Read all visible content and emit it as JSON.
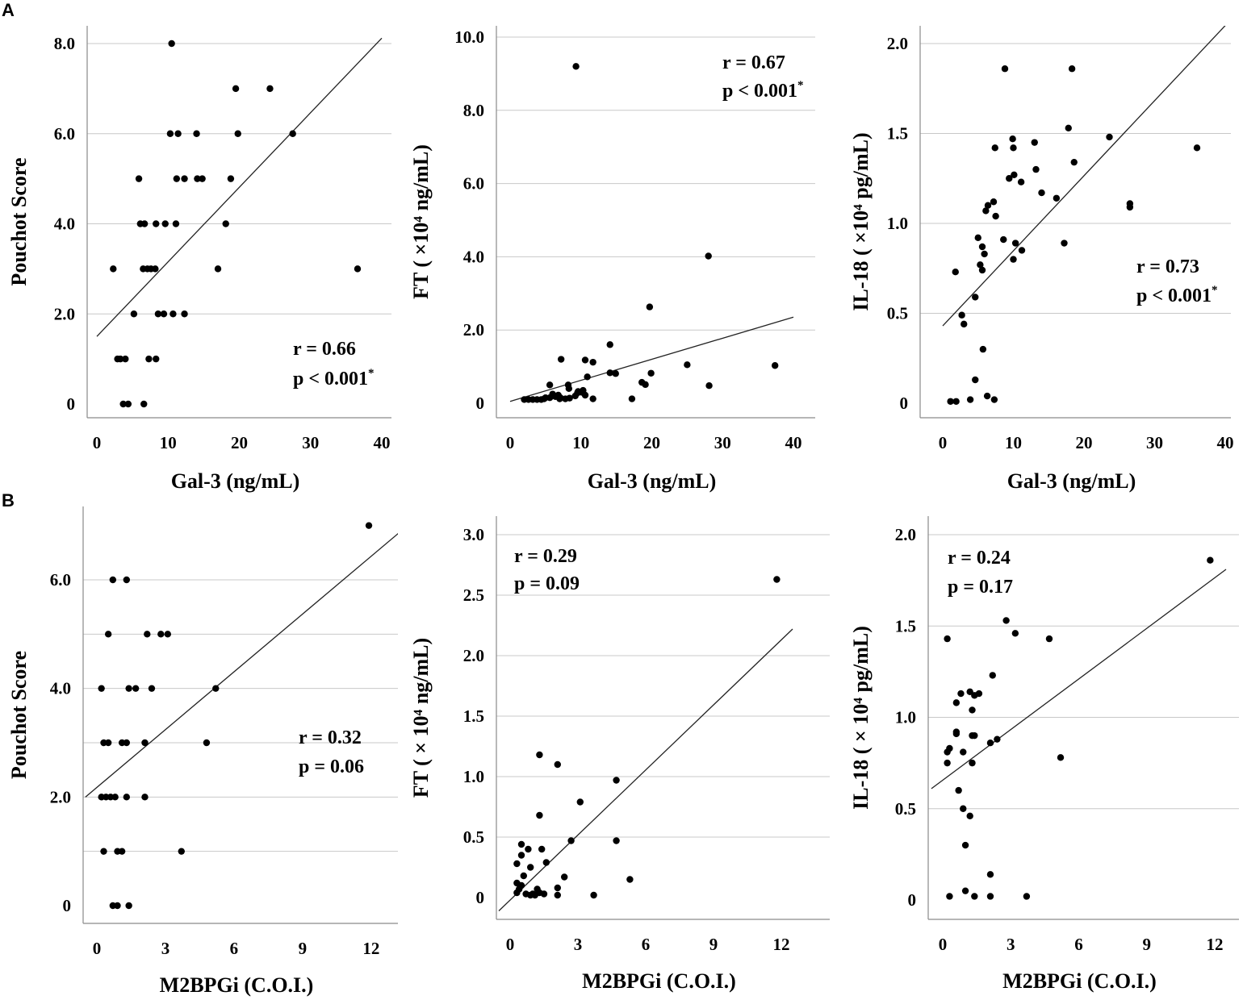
{
  "panel_letters": {
    "a": "A",
    "b": "B"
  },
  "chart_data": [
    {
      "id": "a1",
      "type": "scatter",
      "xlabel": "Gal-3 (ng/mL)",
      "ylabel": "Pouchot Score",
      "xlim": [
        0,
        40
      ],
      "ylim": [
        0,
        8
      ],
      "xticks": [
        0,
        10,
        20,
        30,
        40
      ],
      "xtick_labels": [
        "0",
        "10",
        "20",
        "30",
        "40"
      ],
      "yticks": [
        0,
        2,
        4,
        6,
        8
      ],
      "ytick_labels": [
        "0",
        "2.0",
        "4.0",
        "6.0",
        "8.0"
      ],
      "fit_line": {
        "x": [
          0,
          40
        ],
        "y": [
          1.5,
          8.12
        ]
      },
      "stat_lines": [
        "r = 0.66",
        "p < 0.001"
      ],
      "stat_sup": "*",
      "points": [
        [
          10.5,
          8
        ],
        [
          19.5,
          7
        ],
        [
          24.3,
          7
        ],
        [
          10.3,
          6
        ],
        [
          11.4,
          6
        ],
        [
          14,
          6
        ],
        [
          19.8,
          6
        ],
        [
          27.5,
          6
        ],
        [
          5.9,
          5
        ],
        [
          11.2,
          5
        ],
        [
          12.3,
          5
        ],
        [
          14.1,
          5
        ],
        [
          14.8,
          5
        ],
        [
          18.8,
          5
        ],
        [
          6.1,
          4
        ],
        [
          6.7,
          4
        ],
        [
          8.3,
          4
        ],
        [
          9.6,
          4
        ],
        [
          11.1,
          4
        ],
        [
          18.1,
          4
        ],
        [
          2.3,
          3
        ],
        [
          6.5,
          3
        ],
        [
          7.1,
          3
        ],
        [
          7.6,
          3
        ],
        [
          8.2,
          3
        ],
        [
          17,
          3
        ],
        [
          36.6,
          3
        ],
        [
          5.2,
          2
        ],
        [
          8.6,
          2
        ],
        [
          9.4,
          2
        ],
        [
          10.7,
          2
        ],
        [
          12.3,
          2
        ],
        [
          2.9,
          1
        ],
        [
          3.3,
          1
        ],
        [
          4,
          1
        ],
        [
          7.3,
          1
        ],
        [
          8.3,
          1
        ],
        [
          3.7,
          0
        ],
        [
          4.4,
          0
        ],
        [
          6.6,
          0
        ]
      ]
    },
    {
      "id": "a2",
      "type": "scatter",
      "xlabel": "Gal-3 (ng/mL)",
      "ylabel": "FT ( ×10⁴ ng/mL)",
      "xlim": [
        0,
        40
      ],
      "ylim": [
        0,
        10
      ],
      "xticks": [
        0,
        10,
        20,
        30,
        40
      ],
      "xtick_labels": [
        "0",
        "10",
        "20",
        "30",
        "40"
      ],
      "yticks": [
        0,
        2,
        4,
        6,
        8,
        10
      ],
      "ytick_labels": [
        "0",
        "2.0",
        "4.0",
        "6.0",
        "8.0",
        "10.0"
      ],
      "fit_line": {
        "x": [
          0,
          40
        ],
        "y": [
          0.05,
          2.35
        ]
      },
      "stat_lines": [
        "r = 0.67",
        "p < 0.001"
      ],
      "stat_sup": "*",
      "points": [
        [
          9.3,
          9.2
        ],
        [
          28,
          4.02
        ],
        [
          19.7,
          2.63
        ],
        [
          14.1,
          1.6
        ],
        [
          7.2,
          1.2
        ],
        [
          10.6,
          1.18
        ],
        [
          11.7,
          1.12
        ],
        [
          25,
          1.05
        ],
        [
          37.4,
          1.03
        ],
        [
          14.1,
          0.83
        ],
        [
          14.9,
          0.81
        ],
        [
          19.9,
          0.82
        ],
        [
          10.9,
          0.72
        ],
        [
          18.6,
          0.57
        ],
        [
          19.1,
          0.51
        ],
        [
          5.6,
          0.5
        ],
        [
          8.2,
          0.5
        ],
        [
          28.1,
          0.48
        ],
        [
          8.3,
          0.4
        ],
        [
          10.3,
          0.35
        ],
        [
          9.6,
          0.32
        ],
        [
          10.1,
          0.3
        ],
        [
          9.5,
          0.28
        ],
        [
          6,
          0.25
        ],
        [
          6.8,
          0.22
        ],
        [
          9.2,
          0.2
        ],
        [
          10.6,
          0.22
        ],
        [
          5,
          0.15
        ],
        [
          7.1,
          0.15
        ],
        [
          2,
          0.1
        ],
        [
          2.6,
          0.1
        ],
        [
          3.2,
          0.1
        ],
        [
          3.8,
          0.1
        ],
        [
          4.4,
          0.1
        ],
        [
          4.8,
          0.12
        ],
        [
          5.6,
          0.15
        ],
        [
          6.4,
          0.18
        ],
        [
          7,
          0.12
        ],
        [
          7.8,
          0.12
        ],
        [
          8.4,
          0.14
        ],
        [
          11.7,
          0.12
        ],
        [
          17.2,
          0.12
        ]
      ]
    },
    {
      "id": "a3",
      "type": "scatter",
      "xlabel": "Gal-3 (ng/mL)",
      "ylabel": "IL-18 ( ×10⁴ pg/mL)",
      "xlim": [
        0,
        40
      ],
      "ylim": [
        0,
        2
      ],
      "xticks": [
        0,
        10,
        20,
        30,
        40
      ],
      "xtick_labels": [
        "0",
        "10",
        "20",
        "30",
        "40"
      ],
      "yticks": [
        0,
        0.5,
        1,
        1.5,
        2
      ],
      "ytick_labels": [
        "0",
        "0.5",
        "1.0",
        "1.5",
        "2.0"
      ],
      "fit_line": {
        "x": [
          0,
          40
        ],
        "y": [
          0.43,
          2.1
        ]
      },
      "stat_lines": [
        "r = 0.73",
        "p < 0.001"
      ],
      "stat_sup": "*",
      "points": [
        [
          8.8,
          1.86
        ],
        [
          18.3,
          1.86
        ],
        [
          17.8,
          1.53
        ],
        [
          23.6,
          1.48
        ],
        [
          9.9,
          1.47
        ],
        [
          13,
          1.45
        ],
        [
          7.4,
          1.42
        ],
        [
          10,
          1.42
        ],
        [
          36,
          1.42
        ],
        [
          18.6,
          1.34
        ],
        [
          13.2,
          1.3
        ],
        [
          10.1,
          1.27
        ],
        [
          9.4,
          1.25
        ],
        [
          11.1,
          1.23
        ],
        [
          14,
          1.17
        ],
        [
          16.1,
          1.14
        ],
        [
          7.2,
          1.12
        ],
        [
          26.5,
          1.11
        ],
        [
          6.4,
          1.1
        ],
        [
          6.1,
          1.07
        ],
        [
          26.5,
          1.09
        ],
        [
          7.5,
          1.04
        ],
        [
          5,
          0.92
        ],
        [
          8.6,
          0.91
        ],
        [
          10.3,
          0.89
        ],
        [
          17.2,
          0.89
        ],
        [
          5.6,
          0.87
        ],
        [
          11.2,
          0.85
        ],
        [
          5.9,
          0.83
        ],
        [
          10,
          0.8
        ],
        [
          1.8,
          0.73
        ],
        [
          5.3,
          0.77
        ],
        [
          5.6,
          0.74
        ],
        [
          4.6,
          0.59
        ],
        [
          2.7,
          0.49
        ],
        [
          3,
          0.44
        ],
        [
          5.7,
          0.3
        ],
        [
          4.6,
          0.13
        ],
        [
          6.3,
          0.04
        ],
        [
          7.3,
          0.02
        ],
        [
          1.1,
          0.01
        ],
        [
          1.9,
          0.01
        ],
        [
          3.9,
          0.02
        ]
      ]
    },
    {
      "id": "b1",
      "type": "scatter",
      "xlabel": "M2BPGi (C.O.I.)",
      "ylabel": "Pouchot Score",
      "xlim": [
        0,
        12.5
      ],
      "ylim": [
        0,
        7.1
      ],
      "xticks": [
        0,
        3,
        6,
        9,
        12
      ],
      "xtick_labels": [
        "0",
        "3",
        "6",
        "9",
        "12"
      ],
      "yticks": [
        0,
        1,
        2,
        3,
        4,
        5,
        6
      ],
      "ytick_labels": [
        "0",
        "",
        "2.0",
        "",
        "4.0",
        "",
        "6.0"
      ],
      "fit_line": {
        "x": [
          -0.5,
          13.2
        ],
        "y": [
          2,
          6.86
        ]
      },
      "stat_lines": [
        "r = 0.32",
        "p = 0.06"
      ],
      "stat_sup": "",
      "points": [
        [
          11.9,
          7
        ],
        [
          0.7,
          6
        ],
        [
          1.3,
          6
        ],
        [
          0.5,
          5
        ],
        [
          2.2,
          5
        ],
        [
          2.8,
          5
        ],
        [
          3.1,
          5
        ],
        [
          0.2,
          4
        ],
        [
          1.4,
          4
        ],
        [
          1.7,
          4
        ],
        [
          2.4,
          4
        ],
        [
          5.2,
          4
        ],
        [
          0.3,
          3
        ],
        [
          0.5,
          3
        ],
        [
          1.1,
          3
        ],
        [
          1.3,
          3
        ],
        [
          2.1,
          3
        ],
        [
          4.8,
          3
        ],
        [
          0.2,
          2
        ],
        [
          0.4,
          2
        ],
        [
          0.6,
          2
        ],
        [
          0.8,
          2
        ],
        [
          1.3,
          2
        ],
        [
          2.1,
          2
        ],
        [
          0.3,
          1
        ],
        [
          0.9,
          1
        ],
        [
          1.1,
          1
        ],
        [
          3.7,
          1
        ],
        [
          0.7,
          0
        ],
        [
          0.9,
          0
        ],
        [
          1.4,
          0
        ]
      ]
    },
    {
      "id": "b2",
      "type": "scatter",
      "xlabel": "M2BPGi (C.O.I.)",
      "ylabel": "FT ( × 10⁴ ng/mL)",
      "xlim": [
        0,
        12.5
      ],
      "ylim": [
        0,
        3
      ],
      "xticks": [
        0,
        3,
        6,
        9,
        12
      ],
      "xtick_labels": [
        "0",
        "3",
        "6",
        "9",
        "12"
      ],
      "yticks": [
        0,
        0.5,
        1,
        1.5,
        2,
        2.5,
        3
      ],
      "ytick_labels": [
        "0",
        "0.5",
        "1.0",
        "1.5",
        "2.0",
        "2.5",
        "3.0"
      ],
      "fit_line": {
        "x": [
          -0.5,
          12.5
        ],
        "y": [
          -0.11,
          2.22
        ]
      },
      "stat_lines": [
        "r = 0.29",
        "p = 0.09"
      ],
      "stat_sup": "",
      "points": [
        [
          11.8,
          2.63
        ],
        [
          1.3,
          1.18
        ],
        [
          2.1,
          1.1
        ],
        [
          4.7,
          0.97
        ],
        [
          3.1,
          0.79
        ],
        [
          1.3,
          0.68
        ],
        [
          2.7,
          0.47
        ],
        [
          4.7,
          0.47
        ],
        [
          0.5,
          0.44
        ],
        [
          0.8,
          0.4
        ],
        [
          1.4,
          0.4
        ],
        [
          0.5,
          0.35
        ],
        [
          1.6,
          0.29
        ],
        [
          0.3,
          0.28
        ],
        [
          0.9,
          0.25
        ],
        [
          0.6,
          0.18
        ],
        [
          2.4,
          0.17
        ],
        [
          5.3,
          0.15
        ],
        [
          0.3,
          0.12
        ],
        [
          0.5,
          0.1
        ],
        [
          0.4,
          0.07
        ],
        [
          1.2,
          0.07
        ],
        [
          2.1,
          0.08
        ],
        [
          0.3,
          0.04
        ],
        [
          0.7,
          0.03
        ],
        [
          1,
          0.03
        ],
        [
          1.3,
          0.04
        ],
        [
          0.9,
          0.02
        ],
        [
          1.1,
          0.02
        ],
        [
          1.5,
          0.03
        ],
        [
          2.1,
          0.02
        ],
        [
          3.7,
          0.02
        ]
      ]
    },
    {
      "id": "b3",
      "type": "scatter",
      "xlabel": "M2BPGi (C.O.I.)",
      "ylabel": "IL-18 ( × 10⁴ pg/mL)",
      "xlim": [
        0,
        12.5
      ],
      "ylim": [
        0,
        2
      ],
      "xticks": [
        0,
        3,
        6,
        9,
        12
      ],
      "xtick_labels": [
        "0",
        "3",
        "6",
        "9",
        "12"
      ],
      "yticks": [
        0,
        0.5,
        1,
        1.5,
        2
      ],
      "ytick_labels": [
        "0",
        "0.5",
        "1.0",
        "1.5",
        "2.0"
      ],
      "fit_line": {
        "x": [
          -0.5,
          12.5
        ],
        "y": [
          0.61,
          1.81
        ]
      },
      "stat_lines": [
        "r = 0.24",
        "p = 0.17"
      ],
      "stat_sup": "",
      "points": [
        [
          11.8,
          1.86
        ],
        [
          2.8,
          1.53
        ],
        [
          3.2,
          1.46
        ],
        [
          4.7,
          1.43
        ],
        [
          0.2,
          1.43
        ],
        [
          2.2,
          1.23
        ],
        [
          1.2,
          1.14
        ],
        [
          0.8,
          1.13
        ],
        [
          1.4,
          1.12
        ],
        [
          1.6,
          1.13
        ],
        [
          0.6,
          1.08
        ],
        [
          1.3,
          1.04
        ],
        [
          0.6,
          0.92
        ],
        [
          0.6,
          0.91
        ],
        [
          1.3,
          0.9
        ],
        [
          1.4,
          0.9
        ],
        [
          2.4,
          0.88
        ],
        [
          2.1,
          0.86
        ],
        [
          0.3,
          0.83
        ],
        [
          0.2,
          0.81
        ],
        [
          0.9,
          0.81
        ],
        [
          5.2,
          0.78
        ],
        [
          1.3,
          0.75
        ],
        [
          0.2,
          0.75
        ],
        [
          0.7,
          0.6
        ],
        [
          0.9,
          0.5
        ],
        [
          1.2,
          0.46
        ],
        [
          1,
          0.3
        ],
        [
          2.1,
          0.14
        ],
        [
          1,
          0.05
        ],
        [
          1.4,
          0.02
        ],
        [
          3.7,
          0.02
        ],
        [
          0.3,
          0.02
        ],
        [
          2.1,
          0.02
        ]
      ]
    }
  ]
}
